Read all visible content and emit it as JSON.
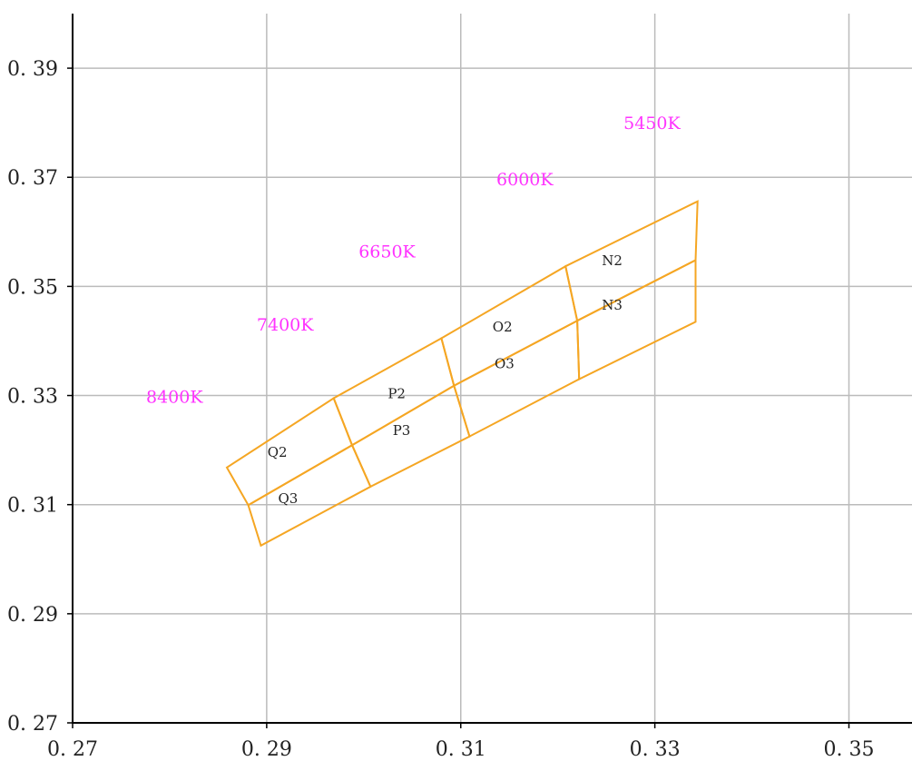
{
  "chart_data": {
    "type": "line",
    "title": "",
    "xlabel": "",
    "ylabel": "",
    "xlim": [
      0.27,
      0.3565
    ],
    "ylim": [
      0.27,
      0.4
    ],
    "x_ticks": [
      "0. 27",
      "0. 29",
      "0. 31",
      "0. 33",
      "0. 35"
    ],
    "x_tick_values": [
      0.27,
      0.29,
      0.31,
      0.33,
      0.35
    ],
    "y_ticks": [
      "0. 27",
      "0. 29",
      "0. 31",
      "0. 33",
      "0. 35",
      "0. 37",
      "0. 39"
    ],
    "y_tick_values": [
      0.27,
      0.29,
      0.31,
      0.33,
      0.35,
      0.37,
      0.39
    ],
    "grid": true,
    "colors": {
      "grid": "#bbbbbb",
      "axis": "#000000",
      "bins": "#f5a623",
      "cct_labels": "#ff33ff",
      "bin_labels": "#222222"
    },
    "cct_labels": [
      {
        "text": "8400K",
        "x": 0.2805,
        "y": 0.3298
      },
      {
        "text": "7400K",
        "x": 0.2919,
        "y": 0.3431
      },
      {
        "text": "6650K",
        "x": 0.3024,
        "y": 0.3565
      },
      {
        "text": "6000K",
        "x": 0.3166,
        "y": 0.3697
      },
      {
        "text": "5450K",
        "x": 0.3297,
        "y": 0.38
      }
    ],
    "bins": [
      {
        "name": "Q2",
        "label": {
          "x": 0.2911,
          "y": 0.3196
        },
        "polygon": [
          [
            0.2859,
            0.3168
          ],
          [
            0.2969,
            0.3295
          ],
          [
            0.2988,
            0.3209
          ],
          [
            0.2881,
            0.3099
          ]
        ]
      },
      {
        "name": "Q3",
        "label": {
          "x": 0.2922,
          "y": 0.3111
        },
        "polygon": [
          [
            0.2881,
            0.3099
          ],
          [
            0.2988,
            0.3209
          ],
          [
            0.3007,
            0.3133
          ],
          [
            0.2894,
            0.3025
          ]
        ]
      },
      {
        "name": "P2",
        "label": {
          "x": 0.3034,
          "y": 0.3303
        },
        "polygon": [
          [
            0.2969,
            0.3295
          ],
          [
            0.308,
            0.3405
          ],
          [
            0.3093,
            0.3318
          ],
          [
            0.2988,
            0.3209
          ]
        ]
      },
      {
        "name": "P3",
        "label": {
          "x": 0.3039,
          "y": 0.3236
        },
        "polygon": [
          [
            0.2988,
            0.3209
          ],
          [
            0.3093,
            0.3318
          ],
          [
            0.3109,
            0.3225
          ],
          [
            0.3007,
            0.3133
          ]
        ]
      },
      {
        "name": "O2",
        "label": {
          "x": 0.3143,
          "y": 0.3426
        },
        "polygon": [
          [
            0.308,
            0.3405
          ],
          [
            0.3208,
            0.3537
          ],
          [
            0.322,
            0.3437
          ],
          [
            0.3093,
            0.3318
          ]
        ]
      },
      {
        "name": "O3",
        "label": {
          "x": 0.3145,
          "y": 0.3358
        },
        "polygon": [
          [
            0.3093,
            0.3318
          ],
          [
            0.322,
            0.3437
          ],
          [
            0.3222,
            0.333
          ],
          [
            0.3109,
            0.3225
          ]
        ]
      },
      {
        "name": "N2",
        "label": {
          "x": 0.3256,
          "y": 0.3547
        },
        "polygon": [
          [
            0.3208,
            0.3537
          ],
          [
            0.3344,
            0.3656
          ],
          [
            0.3342,
            0.3548
          ],
          [
            0.322,
            0.3437
          ]
        ]
      },
      {
        "name": "N3",
        "label": {
          "x": 0.3256,
          "y": 0.3466
        },
        "polygon": [
          [
            0.322,
            0.3437
          ],
          [
            0.3342,
            0.3548
          ],
          [
            0.3342,
            0.3435
          ],
          [
            0.3222,
            0.333
          ]
        ]
      }
    ]
  }
}
